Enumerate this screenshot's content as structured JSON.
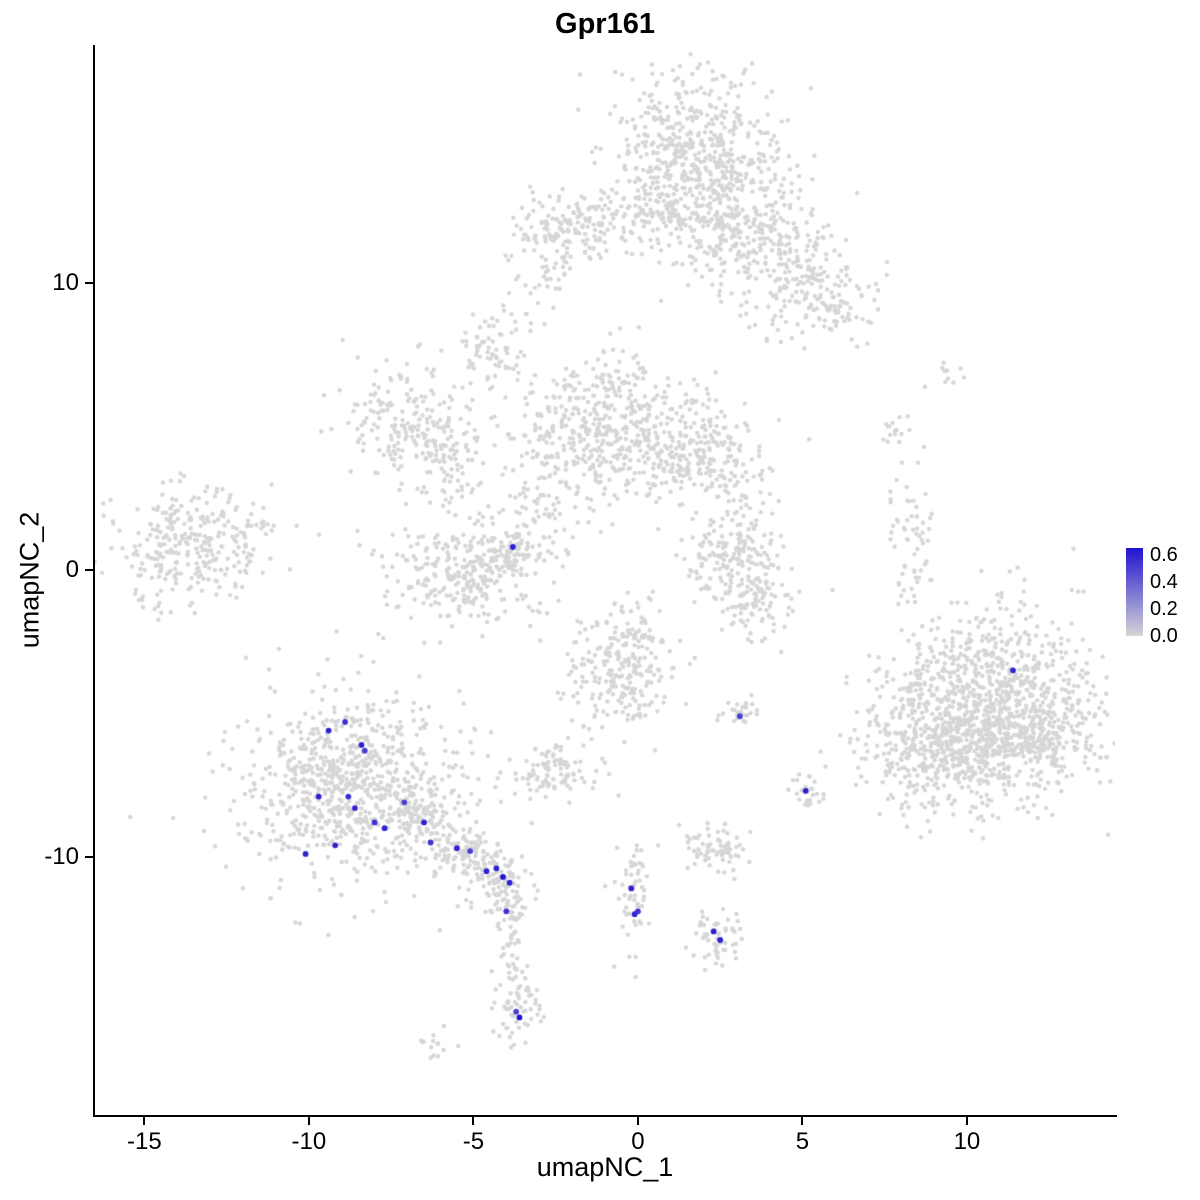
{
  "title": "Gpr161",
  "axes": {
    "x_label": "umapNC_1",
    "y_label": "umapNC_2",
    "x_ticks": [
      -15,
      -10,
      -5,
      0,
      5,
      10
    ],
    "y_ticks": [
      10,
      0,
      -10
    ]
  },
  "legend": {
    "labels": [
      "0.6",
      "0.4",
      "0.2",
      "0.0"
    ],
    "max_value": 0.65,
    "low_color": "#d6d6d6",
    "high_color": "#2012d0"
  },
  "chart_data": {
    "type": "scatter",
    "title": "Gpr161",
    "xlabel": "umapNC_1",
    "ylabel": "umapNC_2",
    "xlim": [
      -16.5,
      14.5
    ],
    "ylim": [
      -19.0,
      18.3
    ],
    "grid": false,
    "legend_position": "right",
    "point_color_low": "#d6d6d6",
    "point_color_high": "#2012d0",
    "seed": 42,
    "gray_point_radius": 2.2,
    "highlight_point_radius": 2.9,
    "clusters": [
      {
        "x": 1.6,
        "y": 14.3,
        "sx": 1.35,
        "sy": 1.5,
        "n": 620
      },
      {
        "x": 3.5,
        "y": 11.6,
        "sx": 1.2,
        "sy": 1.0,
        "n": 260
      },
      {
        "x": 5.2,
        "y": 9.6,
        "sx": 0.9,
        "sy": 0.9,
        "n": 130
      },
      {
        "x": 6.0,
        "y": 9.4,
        "sx": 0.6,
        "sy": 0.7,
        "n": 40
      },
      {
        "x": -2.2,
        "y": 11.8,
        "sx": 0.95,
        "sy": 0.55,
        "n": 140
      },
      {
        "x": 0.0,
        "y": 12.4,
        "sx": 1.3,
        "sy": 0.6,
        "n": 70
      },
      {
        "x": -2.7,
        "y": 10.2,
        "sx": 0.45,
        "sy": 0.55,
        "n": 20
      },
      {
        "x": -3.5,
        "y": 8.8,
        "sx": 0.6,
        "sy": 0.7,
        "n": 25
      },
      {
        "x": -4.6,
        "y": 7.6,
        "sx": 0.5,
        "sy": 0.55,
        "n": 55
      },
      {
        "x": -7.2,
        "y": 5.2,
        "sx": 0.85,
        "sy": 1.05,
        "n": 170
      },
      {
        "x": -5.8,
        "y": 4.0,
        "sx": 0.65,
        "sy": 0.85,
        "n": 90
      },
      {
        "x": -1.0,
        "y": 5.0,
        "sx": 1.35,
        "sy": 1.2,
        "n": 470
      },
      {
        "x": 1.8,
        "y": 4.0,
        "sx": 1.0,
        "sy": 0.95,
        "n": 230
      },
      {
        "x": 3.3,
        "y": 2.2,
        "sx": 0.5,
        "sy": 0.6,
        "n": 25
      },
      {
        "x": -3.2,
        "y": 2.8,
        "sx": 1.1,
        "sy": 1.1,
        "n": 55
      },
      {
        "x": -13.6,
        "y": 0.8,
        "sx": 1.15,
        "sy": 0.95,
        "n": 290
      },
      {
        "x": -11.7,
        "y": 1.6,
        "sx": 0.45,
        "sy": 0.4,
        "n": 15
      },
      {
        "x": -5.3,
        "y": -0.1,
        "sx": 1.3,
        "sy": 0.85,
        "n": 290
      },
      {
        "x": -3.9,
        "y": 0.7,
        "sx": 0.45,
        "sy": 0.4,
        "n": 60
      },
      {
        "x": -3.0,
        "y": 1.8,
        "sx": 0.8,
        "sy": 0.7,
        "n": 25
      },
      {
        "x": 3.0,
        "y": 0.3,
        "sx": 0.75,
        "sy": 0.85,
        "n": 170
      },
      {
        "x": 3.7,
        "y": -1.3,
        "sx": 0.5,
        "sy": 0.6,
        "n": 80
      },
      {
        "x": 8.2,
        "y": 1.2,
        "sx": 0.35,
        "sy": 1.3,
        "n": 60
      },
      {
        "x": 7.8,
        "y": 4.9,
        "sx": 0.3,
        "sy": 0.4,
        "n": 14
      },
      {
        "x": 9.3,
        "y": 6.9,
        "sx": 0.25,
        "sy": 0.3,
        "n": 10
      },
      {
        "x": 10.8,
        "y": -4.6,
        "sx": 1.7,
        "sy": 1.6,
        "n": 950
      },
      {
        "x": 9.4,
        "y": -6.3,
        "sx": 1.3,
        "sy": 1.1,
        "n": 420
      },
      {
        "x": 12.1,
        "y": -5.6,
        "sx": 0.9,
        "sy": 0.9,
        "n": 150
      },
      {
        "x": -8.6,
        "y": -7.6,
        "sx": 1.55,
        "sy": 1.5,
        "n": 720
      },
      {
        "x": -8.6,
        "y": -7.6,
        "sx": 2.4,
        "sy": 2.2,
        "n": 160
      },
      {
        "x": -6.6,
        "y": -8.8,
        "sx": 0.4,
        "sy": 0.4,
        "n": 55
      },
      {
        "x": -5.4,
        "y": -9.6,
        "sx": 0.5,
        "sy": 0.4,
        "n": 75
      },
      {
        "x": -4.4,
        "y": -10.5,
        "sx": 0.5,
        "sy": 0.5,
        "n": 95
      },
      {
        "x": -4.0,
        "y": -11.7,
        "sx": 0.28,
        "sy": 0.55,
        "n": 45
      },
      {
        "x": -3.9,
        "y": -13.2,
        "sx": 0.2,
        "sy": 0.8,
        "n": 25
      },
      {
        "x": -3.7,
        "y": -15.3,
        "sx": 0.38,
        "sy": 0.75,
        "n": 65
      },
      {
        "x": -6.2,
        "y": -16.5,
        "sx": 0.32,
        "sy": 0.26,
        "n": 14
      },
      {
        "x": -0.6,
        "y": -3.6,
        "sx": 0.85,
        "sy": 1.0,
        "n": 230
      },
      {
        "x": 0.1,
        "y": -2.0,
        "sx": 0.35,
        "sy": 0.5,
        "n": 30
      },
      {
        "x": -2.5,
        "y": -7.0,
        "sx": 0.6,
        "sy": 0.42,
        "n": 95
      },
      {
        "x": -0.15,
        "y": -11.3,
        "sx": 0.3,
        "sy": 0.95,
        "n": 55
      },
      {
        "x": 2.4,
        "y": -9.7,
        "sx": 0.55,
        "sy": 0.42,
        "n": 75
      },
      {
        "x": 2.4,
        "y": -12.8,
        "sx": 0.4,
        "sy": 0.55,
        "n": 55
      },
      {
        "x": 3.2,
        "y": -5.0,
        "sx": 0.32,
        "sy": 0.28,
        "n": 28
      },
      {
        "x": 5.1,
        "y": -7.7,
        "sx": 0.3,
        "sy": 0.3,
        "n": 26
      }
    ],
    "highlighted_points": [
      {
        "x": -3.8,
        "y": 0.8,
        "value": 0.6
      },
      {
        "x": -9.4,
        "y": -5.6,
        "value": 0.6
      },
      {
        "x": -8.9,
        "y": -5.3,
        "value": 0.55
      },
      {
        "x": -8.4,
        "y": -6.1,
        "value": 0.6
      },
      {
        "x": -8.3,
        "y": -6.3,
        "value": 0.5
      },
      {
        "x": -9.7,
        "y": -7.9,
        "value": 0.6
      },
      {
        "x": -8.8,
        "y": -7.9,
        "value": 0.55
      },
      {
        "x": -8.6,
        "y": -8.3,
        "value": 0.6
      },
      {
        "x": -9.2,
        "y": -9.6,
        "value": 0.6
      },
      {
        "x": -10.1,
        "y": -9.9,
        "value": 0.6
      },
      {
        "x": -8.0,
        "y": -8.8,
        "value": 0.55
      },
      {
        "x": -7.7,
        "y": -9.0,
        "value": 0.6
      },
      {
        "x": -7.1,
        "y": -8.1,
        "value": 0.5
      },
      {
        "x": -6.5,
        "y": -8.8,
        "value": 0.6
      },
      {
        "x": -6.3,
        "y": -9.5,
        "value": 0.55
      },
      {
        "x": -5.5,
        "y": -9.7,
        "value": 0.6
      },
      {
        "x": -5.1,
        "y": -9.8,
        "value": 0.5
      },
      {
        "x": -4.6,
        "y": -10.5,
        "value": 0.6
      },
      {
        "x": -4.3,
        "y": -10.4,
        "value": 0.6
      },
      {
        "x": -4.1,
        "y": -10.7,
        "value": 0.65
      },
      {
        "x": -3.9,
        "y": -10.9,
        "value": 0.6
      },
      {
        "x": -4.0,
        "y": -11.9,
        "value": 0.55
      },
      {
        "x": -3.6,
        "y": -15.6,
        "value": 0.65
      },
      {
        "x": -3.7,
        "y": -15.4,
        "value": 0.5
      },
      {
        "x": -0.2,
        "y": -11.1,
        "value": 0.6
      },
      {
        "x": -0.1,
        "y": -12.0,
        "value": 0.6
      },
      {
        "x": 0.0,
        "y": -11.9,
        "value": 0.55
      },
      {
        "x": 3.1,
        "y": -5.1,
        "value": 0.5
      },
      {
        "x": 5.1,
        "y": -7.7,
        "value": 0.6
      },
      {
        "x": 2.3,
        "y": -12.6,
        "value": 0.6
      },
      {
        "x": 2.5,
        "y": -12.9,
        "value": 0.6
      },
      {
        "x": 11.4,
        "y": -3.5,
        "value": 0.6
      }
    ]
  }
}
